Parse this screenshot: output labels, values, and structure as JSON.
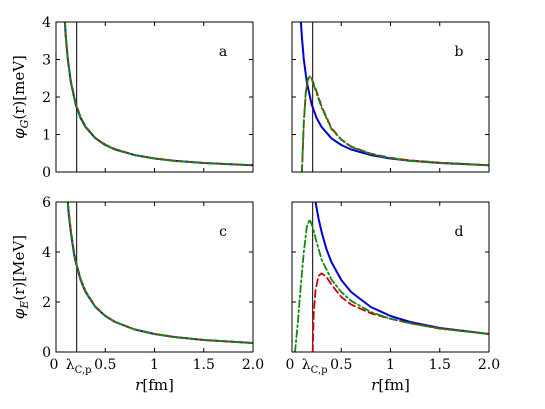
{
  "chart_data": [
    {
      "panel": "a",
      "type": "line",
      "label": "a",
      "ylabel": "φ_G(r)[meV]",
      "xlabel": "",
      "xlim": [
        0,
        2.0
      ],
      "ylim": [
        0,
        4
      ],
      "xticks": [],
      "yticks": [
        "0",
        "1",
        "2",
        "3",
        "4"
      ],
      "vline_x": 0.21,
      "series": [
        {
          "style": "solid",
          "color": "#0000cc",
          "x": [
            0.09,
            0.1,
            0.12,
            0.15,
            0.2,
            0.25,
            0.3,
            0.4,
            0.5,
            0.6,
            0.8,
            1.0,
            1.2,
            1.5,
            2.0
          ],
          "y": [
            4.0,
            3.6,
            3.0,
            2.4,
            1.8,
            1.44,
            1.2,
            0.9,
            0.72,
            0.6,
            0.45,
            0.36,
            0.3,
            0.24,
            0.18
          ]
        },
        {
          "style": "dashed",
          "color": "#cc0000",
          "x": [
            0.09,
            0.1,
            0.12,
            0.15,
            0.2,
            0.25,
            0.3,
            0.4,
            0.5,
            0.6,
            0.8,
            1.0,
            1.2,
            1.5,
            2.0
          ],
          "y": [
            4.0,
            3.62,
            3.02,
            2.44,
            1.83,
            1.47,
            1.22,
            0.91,
            0.73,
            0.61,
            0.45,
            0.36,
            0.3,
            0.24,
            0.18
          ]
        },
        {
          "style": "dashdot",
          "color": "#118811",
          "x": [
            0.09,
            0.1,
            0.12,
            0.15,
            0.2,
            0.25,
            0.3,
            0.4,
            0.5,
            0.6,
            0.8,
            1.0,
            1.2,
            1.5,
            2.0
          ],
          "y": [
            4.0,
            3.61,
            3.01,
            2.42,
            1.81,
            1.45,
            1.21,
            0.9,
            0.72,
            0.6,
            0.45,
            0.36,
            0.3,
            0.24,
            0.18
          ]
        }
      ]
    },
    {
      "panel": "b",
      "type": "line",
      "label": "b",
      "ylabel": "",
      "xlabel": "",
      "xlim": [
        0,
        2.0
      ],
      "ylim": [
        0,
        4
      ],
      "xticks": [],
      "yticks": [],
      "vline_x": 0.21,
      "series": [
        {
          "style": "solid",
          "color": "#0000cc",
          "x": [
            0.09,
            0.1,
            0.12,
            0.15,
            0.2,
            0.25,
            0.3,
            0.4,
            0.5,
            0.6,
            0.8,
            1.0,
            1.2,
            1.5,
            2.0
          ],
          "y": [
            4.0,
            3.6,
            3.0,
            2.4,
            1.8,
            1.44,
            1.2,
            0.9,
            0.72,
            0.6,
            0.45,
            0.36,
            0.3,
            0.24,
            0.18
          ]
        },
        {
          "style": "dashed",
          "color": "#cc0000",
          "x": [
            0.1,
            0.11,
            0.12,
            0.14,
            0.16,
            0.18,
            0.2,
            0.25,
            0.3,
            0.4,
            0.5,
            0.6,
            0.8,
            1.0,
            1.2,
            1.5,
            2.0
          ],
          "y": [
            0.0,
            0.6,
            1.3,
            2.1,
            2.45,
            2.55,
            2.5,
            2.15,
            1.75,
            1.17,
            0.87,
            0.68,
            0.49,
            0.38,
            0.31,
            0.25,
            0.18
          ]
        },
        {
          "style": "dashdot",
          "color": "#118811",
          "x": [
            0.1,
            0.11,
            0.12,
            0.14,
            0.16,
            0.18,
            0.2,
            0.25,
            0.3,
            0.4,
            0.5,
            0.6,
            0.8,
            1.0,
            1.2,
            1.5,
            2.0
          ],
          "y": [
            0.0,
            0.65,
            1.35,
            2.15,
            2.48,
            2.55,
            2.48,
            2.1,
            1.72,
            1.15,
            0.86,
            0.67,
            0.48,
            0.37,
            0.3,
            0.24,
            0.18
          ]
        }
      ]
    },
    {
      "panel": "c",
      "type": "line",
      "label": "c",
      "ylabel": "φ_E(r)[MeV]",
      "xlabel": "r[fm]",
      "xlim": [
        0,
        2.0
      ],
      "ylim": [
        0,
        6
      ],
      "xticks": [
        "0",
        "λC,p",
        "0.5",
        "1",
        "1.5",
        "2.0"
      ],
      "yticks": [
        "0",
        "2",
        "4",
        "6"
      ],
      "vline_x": 0.21,
      "series": [
        {
          "style": "solid",
          "color": "#0000cc",
          "x": [
            0.12,
            0.13,
            0.15,
            0.18,
            0.2,
            0.25,
            0.3,
            0.4,
            0.5,
            0.6,
            0.8,
            1.0,
            1.2,
            1.5,
            2.0
          ],
          "y": [
            6.0,
            5.5,
            4.8,
            4.0,
            3.6,
            2.88,
            2.4,
            1.8,
            1.44,
            1.2,
            0.9,
            0.72,
            0.6,
            0.48,
            0.36
          ]
        },
        {
          "style": "dashed",
          "color": "#cc0000",
          "x": [
            0.12,
            0.13,
            0.15,
            0.18,
            0.2,
            0.25,
            0.3,
            0.4,
            0.5,
            0.6,
            0.8,
            1.0,
            1.2,
            1.5,
            2.0
          ],
          "y": [
            6.0,
            5.6,
            4.9,
            4.1,
            3.66,
            2.93,
            2.44,
            1.82,
            1.45,
            1.21,
            0.9,
            0.72,
            0.6,
            0.48,
            0.36
          ]
        },
        {
          "style": "dashdot",
          "color": "#118811",
          "x": [
            0.12,
            0.13,
            0.15,
            0.18,
            0.2,
            0.25,
            0.3,
            0.4,
            0.5,
            0.6,
            0.8,
            1.0,
            1.2,
            1.5,
            2.0
          ],
          "y": [
            6.0,
            5.55,
            4.85,
            4.05,
            3.63,
            2.9,
            2.42,
            1.81,
            1.44,
            1.2,
            0.9,
            0.72,
            0.6,
            0.48,
            0.36
          ]
        }
      ]
    },
    {
      "panel": "d",
      "type": "line",
      "label": "d",
      "ylabel": "",
      "xlabel": "r[fm]",
      "xlim": [
        0,
        2.0
      ],
      "ylim": [
        0,
        6
      ],
      "xticks": [
        "0",
        "λC,p",
        "0.5",
        "1",
        "1.5",
        "2.0"
      ],
      "yticks": [],
      "vline_x": 0.21,
      "series": [
        {
          "style": "solid",
          "color": "#0000cc",
          "x": [
            0.24,
            0.25,
            0.27,
            0.3,
            0.35,
            0.4,
            0.5,
            0.6,
            0.8,
            1.0,
            1.2,
            1.5,
            2.0
          ],
          "y": [
            6.0,
            5.76,
            5.33,
            4.8,
            4.11,
            3.6,
            2.88,
            2.4,
            1.8,
            1.44,
            1.2,
            0.96,
            0.72
          ]
        },
        {
          "style": "dashed",
          "color": "#cc0000",
          "x": [
            0.21,
            0.22,
            0.24,
            0.27,
            0.3,
            0.35,
            0.4,
            0.5,
            0.6,
            0.8,
            1.0,
            1.2,
            1.5,
            2.0
          ],
          "y": [
            0.0,
            1.5,
            2.5,
            3.05,
            3.15,
            3.0,
            2.7,
            2.2,
            1.9,
            1.55,
            1.33,
            1.15,
            0.95,
            0.72
          ]
        },
        {
          "style": "dashdot",
          "color": "#118811",
          "x": [
            0.03,
            0.06,
            0.09,
            0.12,
            0.15,
            0.18,
            0.21,
            0.25,
            0.3,
            0.4,
            0.5,
            0.6,
            0.8,
            1.0,
            1.2,
            1.5,
            2.0
          ],
          "y": [
            0.0,
            1.2,
            2.7,
            4.0,
            5.0,
            5.3,
            5.0,
            4.4,
            3.7,
            2.9,
            2.4,
            2.05,
            1.6,
            1.33,
            1.15,
            0.93,
            0.72
          ]
        }
      ]
    }
  ]
}
